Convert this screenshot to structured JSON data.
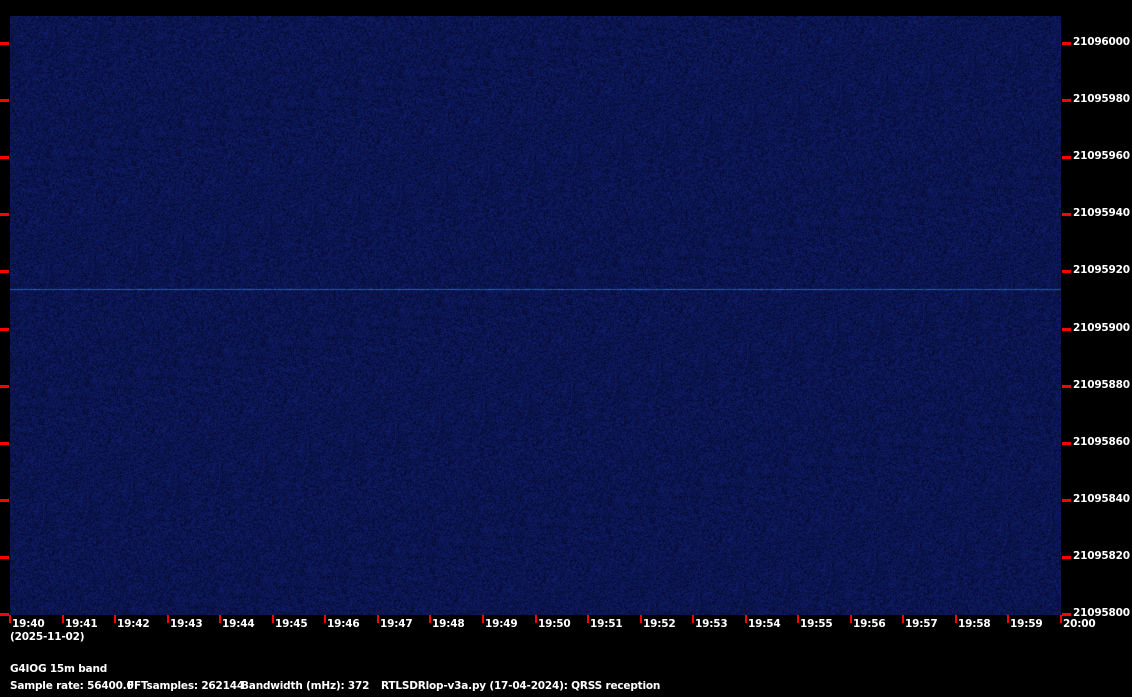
{
  "chart_data": {
    "type": "heatmap",
    "title": "G4IOG 15m band",
    "date": "(2025-11-02)",
    "x_ticks": [
      "19:40",
      "19:41",
      "19:42",
      "19:43",
      "19:44",
      "19:45",
      "19:46",
      "19:47",
      "19:48",
      "19:49",
      "19:50",
      "19:51",
      "19:52",
      "19:53",
      "19:54",
      "19:55",
      "19:56",
      "19:57",
      "19:58",
      "19:59",
      "20:00"
    ],
    "y_ticks": [
      "21096000",
      "21095980",
      "21095960",
      "21095940",
      "21095920",
      "21095900",
      "21095880",
      "21095860",
      "21095840",
      "21095820",
      "21095800"
    ],
    "ylim": [
      21095800,
      21096000
    ],
    "xlim": [
      "19:40",
      "20:00"
    ],
    "signals": [
      {
        "frequency": 21095914,
        "start": "19:40",
        "end": "20:00"
      }
    ],
    "colors": {
      "background": "#000000",
      "noise_base": "#0a1050",
      "signal": "#2c5fa8",
      "tick": "#ff0000",
      "text": "#ffffff"
    }
  },
  "footer": {
    "sample_rate": "Sample rate: 56400.0",
    "fft_samples": "FFTsamples: 262144",
    "bandwidth": "Bandwidth (mHz): 372",
    "software": "RTLSDRlop-v3a.py (17-04-2024): QRSS reception"
  }
}
